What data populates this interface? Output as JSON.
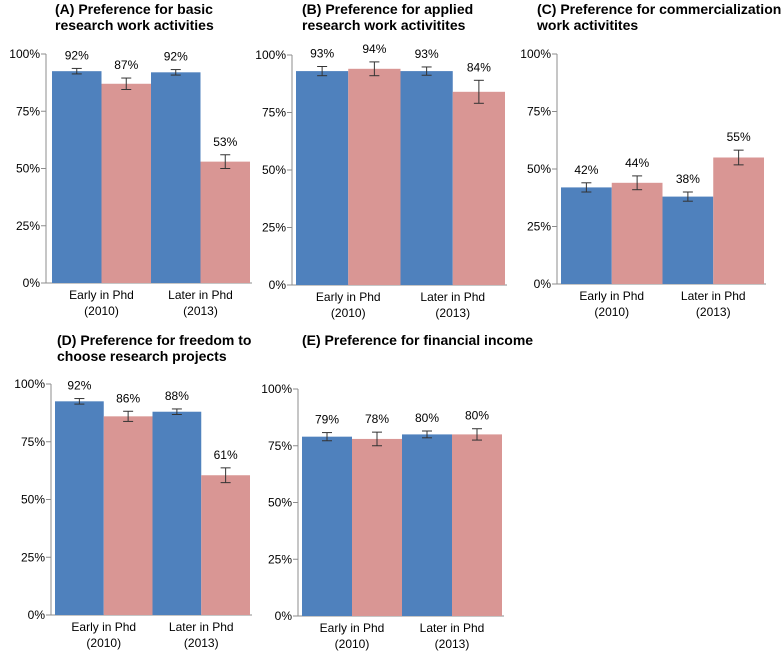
{
  "chart_data": [
    {
      "type": "bar",
      "title_lines": [
        "(A) Preference for basic",
        "research work activities"
      ],
      "categories": [
        [
          "Early in Phd",
          "(2010)"
        ],
        [
          "Later in Phd",
          "(2013)"
        ]
      ],
      "ylim": [
        0,
        100
      ],
      "yticks": [
        "0%",
        "25%",
        "50%",
        "75%",
        "100%"
      ],
      "series": [
        {
          "name": "blue",
          "color": "#4f81bd",
          "values": [
            92.5,
            92
          ],
          "errors": [
            1.2,
            1.2
          ],
          "labels": [
            "92%",
            "92%"
          ]
        },
        {
          "name": "red",
          "color": "#d99694",
          "values": [
            87,
            53
          ],
          "errors": [
            2.5,
            3.0
          ],
          "labels": [
            "87%",
            "53%"
          ]
        }
      ]
    },
    {
      "type": "bar",
      "title_lines": [
        "(B) Preference for applied",
        "research work activitites"
      ],
      "categories": [
        [
          "Early in Phd",
          "(2010)"
        ],
        [
          "Later in Phd",
          "(2013)"
        ]
      ],
      "ylim": [
        0,
        100
      ],
      "yticks": [
        "0%",
        "25%",
        "50%",
        "75%",
        "100%"
      ],
      "series": [
        {
          "name": "blue",
          "color": "#4f81bd",
          "values": [
            93,
            93
          ],
          "errors": [
            2.0,
            1.8
          ],
          "labels": [
            "93%",
            "93%"
          ]
        },
        {
          "name": "red",
          "color": "#d99694",
          "values": [
            94,
            84
          ],
          "errors": [
            3.0,
            5.0
          ],
          "labels": [
            "94%",
            "84%"
          ]
        }
      ]
    },
    {
      "type": "bar",
      "title_lines": [
        "(C) Preference for commercialization",
        "work activitites"
      ],
      "categories": [
        [
          "Early in Phd",
          "(2010)"
        ],
        [
          "Later in Phd",
          "(2013)"
        ]
      ],
      "ylim": [
        0,
        100
      ],
      "yticks": [
        "0%",
        "25%",
        "50%",
        "75%",
        "100%"
      ],
      "series": [
        {
          "name": "blue",
          "color": "#4f81bd",
          "values": [
            42,
            38
          ],
          "errors": [
            2.0,
            2.0
          ],
          "labels": [
            "42%",
            "38%"
          ]
        },
        {
          "name": "red",
          "color": "#d99694",
          "values": [
            44,
            55
          ],
          "errors": [
            3.0,
            3.2
          ],
          "labels": [
            "44%",
            "55%"
          ]
        }
      ]
    },
    {
      "type": "bar",
      "title_lines": [
        "(D) Preference for freedom to",
        "choose research projects"
      ],
      "categories": [
        [
          "Early in Phd",
          "(2010)"
        ],
        [
          "Later in Phd",
          "(2013)"
        ]
      ],
      "ylim": [
        0,
        100
      ],
      "yticks": [
        "0%",
        "25%",
        "50%",
        "75%",
        "100%"
      ],
      "series": [
        {
          "name": "blue",
          "color": "#4f81bd",
          "values": [
            92.5,
            88
          ],
          "errors": [
            1.2,
            1.2
          ],
          "labels": [
            "92%",
            "88%"
          ]
        },
        {
          "name": "red",
          "color": "#d99694",
          "values": [
            86,
            60.5
          ],
          "errors": [
            2.2,
            3.2
          ],
          "labels": [
            "86%",
            "61%"
          ]
        }
      ]
    },
    {
      "type": "bar",
      "title_lines": [
        "(E) Preference for financial income"
      ],
      "categories": [
        [
          "Early in Phd",
          "(2010)"
        ],
        [
          "Later in Phd",
          "(2013)"
        ]
      ],
      "ylim": [
        0,
        100
      ],
      "yticks": [
        "0%",
        "25%",
        "50%",
        "75%",
        "100%"
      ],
      "series": [
        {
          "name": "blue",
          "color": "#4f81bd",
          "values": [
            79,
            80
          ],
          "errors": [
            1.8,
            1.5
          ],
          "labels": [
            "79%",
            "80%"
          ]
        },
        {
          "name": "red",
          "color": "#d99694",
          "values": [
            78,
            80
          ],
          "errors": [
            3.0,
            2.5
          ],
          "labels": [
            "78%",
            "80%"
          ]
        }
      ]
    }
  ]
}
